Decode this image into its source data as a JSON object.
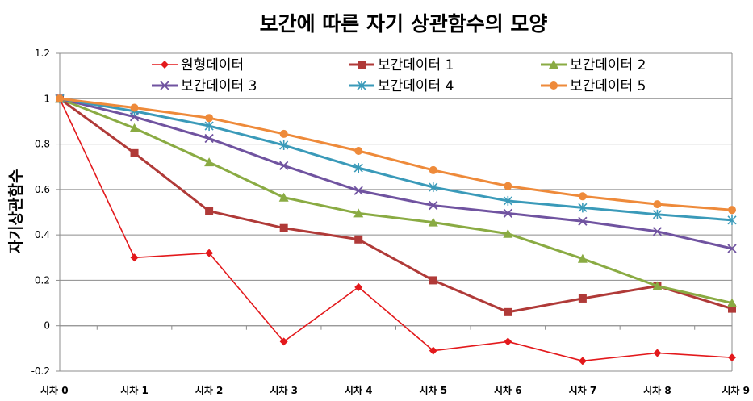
{
  "chart_data": {
    "type": "line",
    "title": "보간에 따른 자기 상관함수의 모양",
    "xlabel": "",
    "ylabel": "자기상관함수",
    "categories": [
      "시차 0",
      "시차 1",
      "시차 2",
      "시차 3",
      "시차 4",
      "시차 5",
      "시차 6",
      "시차 7",
      "시차 8",
      "시차 9"
    ],
    "ylim": [
      -0.2,
      1.2
    ],
    "yticks": [
      "-0.2",
      "0",
      "0.2",
      "0.4",
      "0.6",
      "0.8",
      "1",
      "1.2"
    ],
    "grid": true,
    "legend_position": "top",
    "series": [
      {
        "name": "원형데이터",
        "color": "#e3191c",
        "marker": "diamond",
        "values": [
          1.0,
          0.3,
          0.32,
          -0.07,
          0.17,
          -0.11,
          -0.07,
          -0.155,
          -0.12,
          -0.14
        ]
      },
      {
        "name": "보간데이터 1",
        "color": "#b03a38",
        "marker": "square",
        "values": [
          1.0,
          0.76,
          0.505,
          0.43,
          0.38,
          0.2,
          0.06,
          0.12,
          0.175,
          0.075
        ]
      },
      {
        "name": "보간데이터 2",
        "color": "#8aab43",
        "marker": "triangle",
        "values": [
          1.0,
          0.87,
          0.72,
          0.565,
          0.495,
          0.455,
          0.405,
          0.295,
          0.175,
          0.1
        ]
      },
      {
        "name": "보간데이터 3",
        "color": "#7053a0",
        "marker": "x",
        "values": [
          1.0,
          0.92,
          0.825,
          0.705,
          0.595,
          0.53,
          0.495,
          0.46,
          0.415,
          0.34
        ]
      },
      {
        "name": "보간데이터 4",
        "color": "#3a9ab9",
        "marker": "star",
        "values": [
          1.0,
          0.945,
          0.88,
          0.795,
          0.695,
          0.61,
          0.55,
          0.52,
          0.49,
          0.465
        ]
      },
      {
        "name": "보간데이터 5",
        "color": "#ee8a3a",
        "marker": "circle",
        "values": [
          1.0,
          0.96,
          0.915,
          0.845,
          0.77,
          0.685,
          0.615,
          0.57,
          0.535,
          0.51
        ]
      }
    ]
  }
}
